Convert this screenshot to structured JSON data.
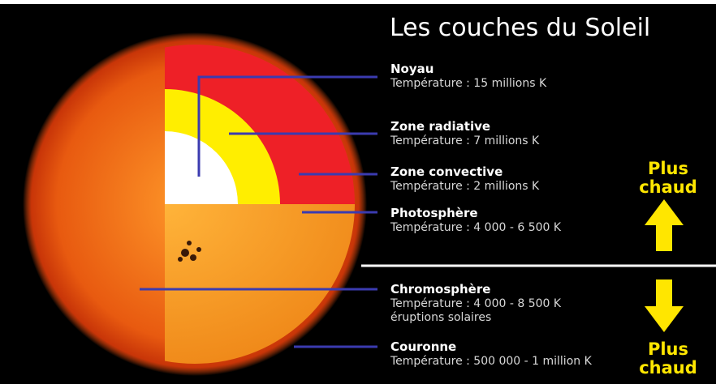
{
  "title": "Les couches du Soleil",
  "layers": [
    {
      "name": "Noyau",
      "lines": [
        "Température : 15 millions K"
      ]
    },
    {
      "name": "Zone radiative",
      "lines": [
        "Température : 7 millions K"
      ]
    },
    {
      "name": "Zone convective",
      "lines": [
        "Température : 2 millions K"
      ]
    },
    {
      "name": "Photosphère",
      "lines": [
        "Température : 4 000 - 6 500 K"
      ]
    },
    {
      "name": "Chromosphère",
      "lines": [
        "Température : 4 000 - 8 500 K",
        "éruptions solaires"
      ]
    },
    {
      "name": "Couronne",
      "lines": [
        "Température : 500 000 - 1 million K"
      ]
    }
  ],
  "hotter_up": [
    "Plus",
    "chaud"
  ],
  "hotter_down": [
    "Plus",
    "chaud"
  ]
}
